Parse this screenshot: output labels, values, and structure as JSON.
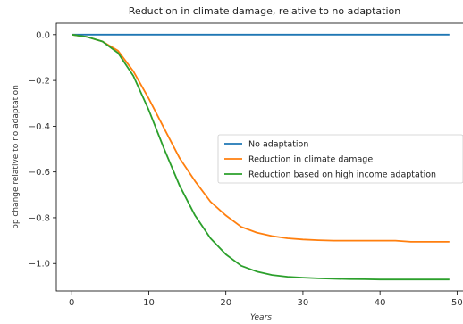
{
  "chart_data": {
    "type": "line",
    "title": "Reduction in climate damage, relative to no adaptation",
    "xlabel": "Years",
    "ylabel": "pp change relative to no adaptation",
    "xlim": [
      -2,
      51
    ],
    "ylim": [
      -1.12,
      0.05
    ],
    "xticks": [
      0,
      10,
      20,
      30,
      40,
      50
    ],
    "yticks": [
      0.0,
      -0.2,
      -0.4,
      -0.6,
      -0.8,
      -1.0
    ],
    "ytick_labels": [
      "0.0",
      "−0.2",
      "−0.4",
      "−0.6",
      "−0.8",
      "−1.0"
    ],
    "legend_position": "center-right",
    "grid": false,
    "x": [
      0,
      2,
      4,
      6,
      8,
      10,
      12,
      14,
      16,
      18,
      20,
      22,
      24,
      26,
      28,
      30,
      32,
      34,
      36,
      38,
      40,
      42,
      44,
      46,
      49
    ],
    "series": [
      {
        "name": "No adaptation",
        "color": "#1f77b4",
        "values": [
          0,
          0,
          0,
          0,
          0,
          0,
          0,
          0,
          0,
          0,
          0,
          0,
          0,
          0,
          0,
          0,
          0,
          0,
          0,
          0,
          0,
          0,
          0,
          0,
          0
        ]
      },
      {
        "name": "Reduction in climate damage",
        "color": "#ff7f0e",
        "values": [
          0,
          -0.01,
          -0.03,
          -0.07,
          -0.16,
          -0.28,
          -0.41,
          -0.54,
          -0.64,
          -0.73,
          -0.79,
          -0.84,
          -0.865,
          -0.88,
          -0.89,
          -0.895,
          -0.898,
          -0.9,
          -0.9,
          -0.9,
          -0.9,
          -0.9,
          -0.905,
          -0.905,
          -0.905
        ]
      },
      {
        "name": "Reduction based on high income adaptation",
        "color": "#2ca02c",
        "values": [
          0,
          -0.01,
          -0.03,
          -0.08,
          -0.18,
          -0.33,
          -0.5,
          -0.66,
          -0.79,
          -0.89,
          -0.96,
          -1.01,
          -1.035,
          -1.05,
          -1.058,
          -1.062,
          -1.065,
          -1.067,
          -1.068,
          -1.069,
          -1.07,
          -1.07,
          -1.07,
          -1.07,
          -1.07
        ]
      }
    ]
  }
}
